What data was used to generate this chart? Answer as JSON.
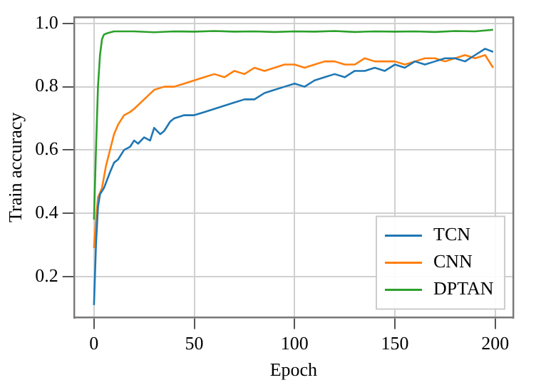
{
  "chart_data": {
    "type": "line",
    "xlabel": "Epoch",
    "ylabel": "Train accuracy",
    "xlim": [
      -10,
      209
    ],
    "xticks": [
      0,
      50,
      100,
      150,
      200
    ],
    "ylim": [
      0.07,
      1.02
    ],
    "yticks": [
      {
        "value": 0.2,
        "label": "0.2"
      },
      {
        "value": 0.4,
        "label": "0.4"
      },
      {
        "value": 0.6,
        "label": "0.6"
      },
      {
        "value": 0.8,
        "label": "0.8"
      },
      {
        "value": 1,
        "label": "1.0"
      }
    ],
    "grid": true,
    "legend": "bottom right",
    "marker": "none",
    "line_style": "solid",
    "series": [
      {
        "name": "TCN",
        "color": "#1f77b4",
        "x": [
          0,
          1,
          2,
          3,
          5,
          8,
          10,
          12,
          15,
          18,
          20,
          22,
          25,
          28,
          30,
          33,
          35,
          38,
          40,
          45,
          50,
          55,
          60,
          65,
          70,
          75,
          80,
          85,
          90,
          95,
          100,
          105,
          110,
          115,
          120,
          125,
          130,
          135,
          140,
          145,
          150,
          155,
          160,
          165,
          170,
          175,
          180,
          185,
          190,
          195,
          199
        ],
        "values": [
          0.11,
          0.3,
          0.42,
          0.46,
          0.48,
          0.53,
          0.56,
          0.57,
          0.6,
          0.61,
          0.63,
          0.62,
          0.64,
          0.63,
          0.67,
          0.65,
          0.66,
          0.69,
          0.7,
          0.71,
          0.71,
          0.72,
          0.73,
          0.74,
          0.75,
          0.76,
          0.76,
          0.78,
          0.79,
          0.8,
          0.81,
          0.8,
          0.82,
          0.83,
          0.84,
          0.83,
          0.85,
          0.85,
          0.86,
          0.85,
          0.87,
          0.86,
          0.88,
          0.87,
          0.88,
          0.89,
          0.89,
          0.88,
          0.9,
          0.92,
          0.91
        ]
      },
      {
        "name": "CNN",
        "color": "#ff7f0e",
        "x": [
          0,
          1,
          2,
          4,
          6,
          8,
          10,
          12,
          15,
          18,
          20,
          25,
          30,
          35,
          40,
          45,
          50,
          55,
          60,
          65,
          70,
          75,
          80,
          85,
          90,
          95,
          100,
          105,
          110,
          115,
          120,
          125,
          130,
          135,
          140,
          145,
          150,
          155,
          160,
          165,
          170,
          175,
          180,
          185,
          190,
          195,
          199
        ],
        "values": [
          0.29,
          0.38,
          0.45,
          0.48,
          0.55,
          0.6,
          0.65,
          0.68,
          0.71,
          0.72,
          0.73,
          0.76,
          0.79,
          0.8,
          0.8,
          0.81,
          0.82,
          0.83,
          0.84,
          0.83,
          0.85,
          0.84,
          0.86,
          0.85,
          0.86,
          0.87,
          0.87,
          0.86,
          0.87,
          0.88,
          0.88,
          0.87,
          0.87,
          0.89,
          0.88,
          0.88,
          0.88,
          0.87,
          0.88,
          0.89,
          0.89,
          0.88,
          0.89,
          0.9,
          0.89,
          0.9,
          0.86
        ]
      },
      {
        "name": "DPTAN",
        "color": "#2ca02c",
        "x": [
          0,
          1,
          2,
          3,
          4,
          5,
          7,
          10,
          20,
          30,
          40,
          50,
          60,
          70,
          80,
          90,
          100,
          110,
          120,
          130,
          140,
          150,
          160,
          170,
          180,
          190,
          199
        ],
        "values": [
          0.38,
          0.6,
          0.8,
          0.9,
          0.95,
          0.965,
          0.97,
          0.975,
          0.975,
          0.972,
          0.975,
          0.974,
          0.976,
          0.974,
          0.975,
          0.973,
          0.975,
          0.974,
          0.976,
          0.973,
          0.975,
          0.974,
          0.975,
          0.973,
          0.976,
          0.975,
          0.98
        ]
      }
    ]
  }
}
